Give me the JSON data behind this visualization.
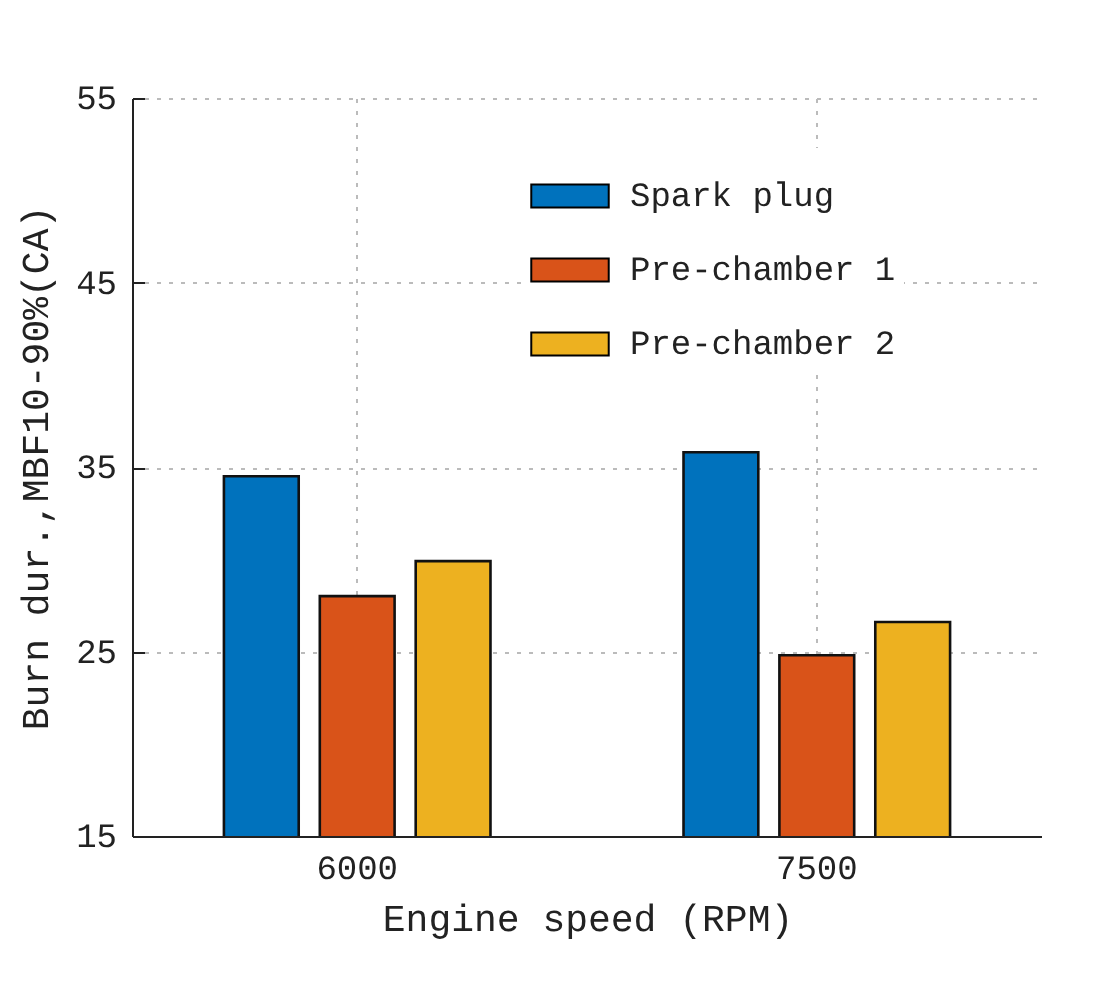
{
  "chart_data": {
    "type": "bar",
    "xlabel": "Engine speed (RPM)",
    "ylabel": "Burn dur.,MBF10-90%(CA)",
    "categories": [
      "6000",
      "7500"
    ],
    "series": [
      {
        "name": "Spark plug",
        "color": "#0072bd",
        "values": [
          34.5,
          35.8
        ]
      },
      {
        "name": "Pre-chamber 1",
        "color": "#d95319",
        "values": [
          28.0,
          24.8
        ]
      },
      {
        "name": "Pre-chamber 2",
        "color": "#edb120",
        "values": [
          29.9,
          26.6
        ]
      }
    ],
    "ylim": [
      15,
      55
    ],
    "yticks": [
      15,
      25,
      35,
      45,
      55
    ],
    "grid": true,
    "legend": "top right"
  }
}
